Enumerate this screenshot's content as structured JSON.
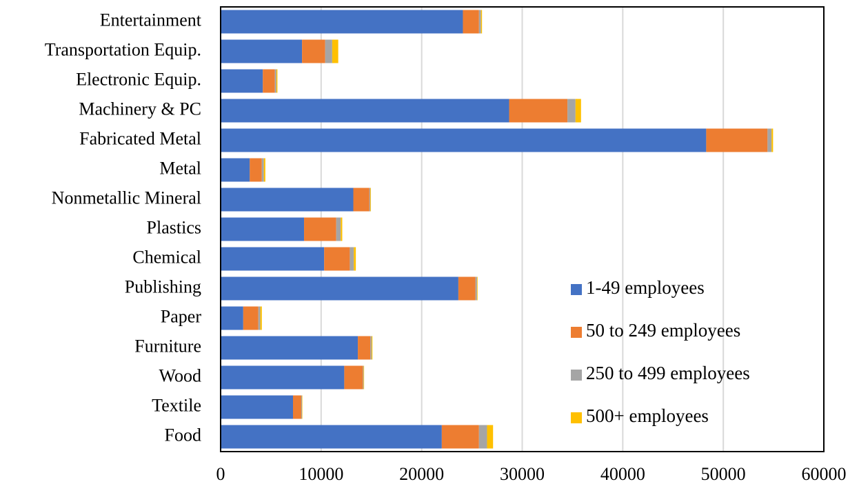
{
  "chart_data": {
    "type": "stacked-bar-horizontal",
    "categories": [
      "Entertainment",
      "Transportation Equip.",
      "Electronic Equip.",
      "Machinery & PC",
      "Fabricated Metal",
      "Metal",
      "Nonmetallic Mineral",
      "Plastics",
      "Chemical",
      "Publishing",
      "Paper",
      "Furniture",
      "Wood",
      "Textile",
      "Food"
    ],
    "series": [
      {
        "name": "1-49 employees",
        "color": "#4472c4",
        "values": [
          24100,
          8100,
          4200,
          28700,
          48300,
          2900,
          13200,
          8300,
          10300,
          23650,
          2250,
          13650,
          12300,
          7200,
          22000
        ]
      },
      {
        "name": "50 to 249 employees",
        "color": "#ed7d31",
        "values": [
          1600,
          2300,
          1200,
          5800,
          6100,
          1200,
          1600,
          3200,
          2550,
          1700,
          1500,
          1250,
          1850,
          820,
          3700
        ]
      },
      {
        "name": "250 to 499 employees",
        "color": "#a5a5a5",
        "values": [
          200,
          700,
          150,
          800,
          400,
          200,
          80,
          450,
          400,
          150,
          200,
          120,
          70,
          70,
          800
        ]
      },
      {
        "name": "500+ employees",
        "color": "#ffc000",
        "values": [
          100,
          600,
          100,
          550,
          150,
          150,
          60,
          150,
          200,
          60,
          150,
          80,
          50,
          40,
          600
        ]
      }
    ],
    "xlim": [
      0,
      60000
    ],
    "xticks": [
      0,
      10000,
      20000,
      30000,
      40000,
      50000,
      60000
    ],
    "grid": true
  }
}
